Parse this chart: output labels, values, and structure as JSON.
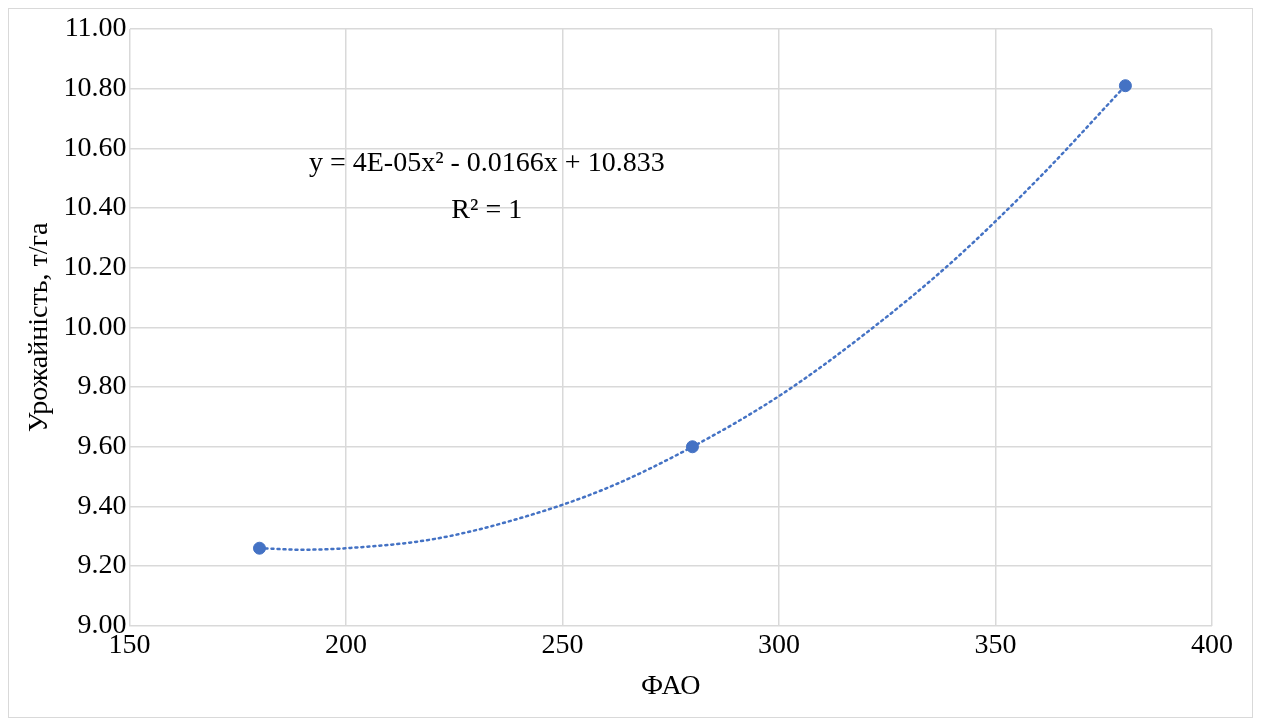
{
  "chart_data": {
    "type": "scatter",
    "xlabel": "ФАО",
    "ylabel": "Урожайність, т/га",
    "xlim": [
      150,
      400
    ],
    "xticks": [
      150,
      200,
      250,
      300,
      350,
      400
    ],
    "ylim": [
      9,
      11
    ],
    "yticks": [
      {
        "value": 9,
        "label": "9.00"
      },
      {
        "value": 9.2,
        "label": "9.20"
      },
      {
        "value": 9.4,
        "label": "9.40"
      },
      {
        "value": 9.6,
        "label": "9.60"
      },
      {
        "value": 9.8,
        "label": "9.80"
      },
      {
        "value": 10,
        "label": "10.00"
      },
      {
        "value": 10.2,
        "label": "10.20"
      },
      {
        "value": 10.4,
        "label": "10.40"
      },
      {
        "value": 10.6,
        "label": "10.60"
      },
      {
        "value": 10.8,
        "label": "10.80"
      },
      {
        "value": 11,
        "label": "11.00"
      }
    ],
    "grid": true,
    "legend": false,
    "marker": "circle",
    "series": [
      {
        "type": "scatter",
        "color": "#4472c4",
        "x": [
          180,
          280,
          380
        ],
        "values": [
          9.26,
          9.6,
          10.81
        ]
      },
      {
        "type": "line",
        "color": "#4472c4",
        "line_style": "dotted",
        "marker": "none",
        "x": [
          180,
          190,
          200,
          220,
          240,
          260,
          280,
          300,
          320,
          340,
          360,
          380
        ],
        "values": [
          9.26,
          9.255,
          9.26,
          9.29,
          9.36,
          9.46,
          9.6,
          9.77,
          9.98,
          10.22,
          10.5,
          10.81
        ]
      }
    ],
    "annotations": [
      "y = 4E-05x² - 0.0166x + 10.833",
      "R² = 1"
    ]
  }
}
